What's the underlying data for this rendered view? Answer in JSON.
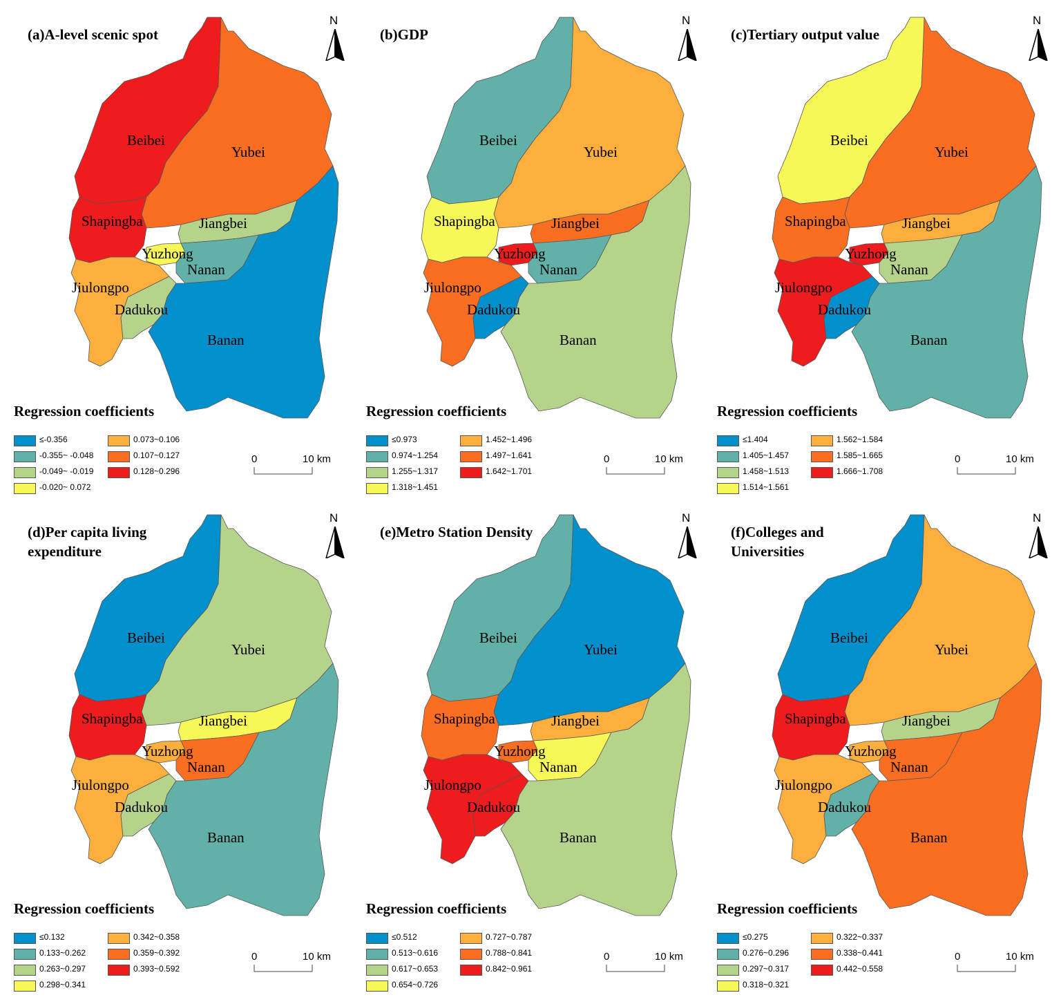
{
  "north_label": "N",
  "legend_title": "Regression coefficients",
  "scale": {
    "zero": "0",
    "ten": "10 km"
  },
  "district_names": {
    "beibei": "Beibei",
    "yubei": "Yubei",
    "shapingba": "Shapingba",
    "jiangbei": "Jiangbei",
    "yuzhong": "Yuzhong",
    "nanan": "Nanan",
    "jiulongpo": "Jiulongpo",
    "dadukou": "Dadukou",
    "banan": "Banan"
  },
  "class_colors": [
    "#0290cc",
    "#62b1a9",
    "#b6d38c",
    "#f7f757",
    "#fcaf3c",
    "#fa6e22",
    "#ee1c1c"
  ],
  "panels": [
    {
      "title": "(a)A-level scenic spot",
      "legend": [
        "≤-0.356",
        "-0.355~ -0.048",
        "-0.049~ -0.019",
        "-0.020~ 0.072",
        "0.073~0.106",
        "0.107~0.127",
        "0.128~0.296"
      ],
      "classes": {
        "beibei": 6,
        "yubei": 5,
        "shapingba": 6,
        "jiangbei": 2,
        "yuzhong": 3,
        "nanan": 1,
        "jiulongpo": 4,
        "dadukou": 2,
        "banan": 0
      }
    },
    {
      "title": "(b)GDP",
      "legend": [
        "≤0.973",
        "0.974~1.254",
        "1.255~1.317",
        "1.318~1.451",
        "1.452~1.496",
        "1.497~1.641",
        "1.642~1.701"
      ],
      "classes": {
        "beibei": 1,
        "yubei": 4,
        "shapingba": 3,
        "jiangbei": 5,
        "yuzhong": 6,
        "nanan": 1,
        "jiulongpo": 5,
        "dadukou": 0,
        "banan": 2
      }
    },
    {
      "title": "(c)Tertiary output value",
      "legend": [
        "≤1.404",
        "1.405~1.457",
        "1.458~1.513",
        "1.514~1.561",
        "1.562~1.584",
        "1.585~1.665",
        "1.666~1.708"
      ],
      "classes": {
        "beibei": 3,
        "yubei": 5,
        "shapingba": 5,
        "jiangbei": 4,
        "yuzhong": 6,
        "nanan": 2,
        "jiulongpo": 6,
        "dadukou": 0,
        "banan": 1
      }
    },
    {
      "title": "(d)Per capita living expenditure",
      "legend": [
        "≤0.132",
        "0.133~0.262",
        "0.263~0.297",
        "0.298~0.341",
        "0.342~0.358",
        "0.359~0.392",
        "0.393~0.592"
      ],
      "classes": {
        "beibei": 0,
        "yubei": 2,
        "shapingba": 6,
        "jiangbei": 3,
        "yuzhong": 4,
        "nanan": 5,
        "jiulongpo": 4,
        "dadukou": 2,
        "banan": 1
      }
    },
    {
      "title": "(e)Metro Station Density",
      "legend": [
        "≤0.512",
        "0.513~0.616",
        "0.617~0.653",
        "0.654~0.726",
        "0.727~0.787",
        "0.788~0.841",
        "0.842~0.961"
      ],
      "classes": {
        "beibei": 1,
        "yubei": 0,
        "shapingba": 5,
        "jiangbei": 4,
        "yuzhong": 5,
        "nanan": 3,
        "jiulongpo": 6,
        "dadukou": 6,
        "banan": 2
      }
    },
    {
      "title": "(f)Colleges and Universities",
      "legend": [
        "≤0.275",
        "0.276~0.296",
        "0.297~0.317",
        "0.318~0.321",
        "0.322~0.337",
        "0.338~0.441",
        "0.442~0.558"
      ],
      "classes": {
        "beibei": 0,
        "yubei": 4,
        "shapingba": 6,
        "jiangbei": 2,
        "yuzhong": 4,
        "nanan": 5,
        "jiulongpo": 4,
        "dadukou": 1,
        "banan": 5
      }
    }
  ]
}
